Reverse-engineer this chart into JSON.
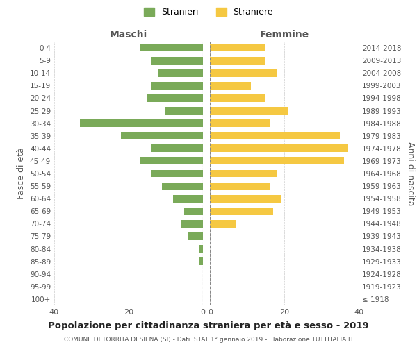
{
  "age_groups": [
    "100+",
    "95-99",
    "90-94",
    "85-89",
    "80-84",
    "75-79",
    "70-74",
    "65-69",
    "60-64",
    "55-59",
    "50-54",
    "45-49",
    "40-44",
    "35-39",
    "30-34",
    "25-29",
    "20-24",
    "15-19",
    "10-14",
    "5-9",
    "0-4"
  ],
  "birth_years": [
    "≤ 1918",
    "1919-1923",
    "1924-1928",
    "1929-1933",
    "1934-1938",
    "1939-1943",
    "1944-1948",
    "1949-1953",
    "1954-1958",
    "1959-1963",
    "1964-1968",
    "1969-1973",
    "1974-1978",
    "1979-1983",
    "1984-1988",
    "1989-1993",
    "1994-1998",
    "1999-2003",
    "2004-2008",
    "2009-2013",
    "2014-2018"
  ],
  "maschi": [
    0,
    0,
    0,
    1,
    1,
    4,
    6,
    5,
    8,
    11,
    14,
    17,
    14,
    22,
    33,
    10,
    15,
    14,
    12,
    14,
    17
  ],
  "femmine": [
    0,
    0,
    0,
    0,
    0,
    0,
    7,
    17,
    19,
    16,
    18,
    36,
    37,
    35,
    16,
    21,
    15,
    11,
    18,
    15,
    15
  ],
  "color_maschi": "#7aaa59",
  "color_femmine": "#f5c842",
  "title": "Popolazione per cittadinanza straniera per età e sesso - 2019",
  "subtitle": "COMUNE DI TORRITA DI SIENA (SI) - Dati ISTAT 1° gennaio 2019 - Elaborazione TUTTITALIA.IT",
  "ylabel_left": "Fasce di età",
  "ylabel_right": "Anni di nascita",
  "xlabel_maschi": "Maschi",
  "xlabel_femmine": "Femmine",
  "legend_maschi": "Stranieri",
  "legend_femmine": "Straniere",
  "xlim": 40,
  "background_color": "#ffffff",
  "grid_color": "#cccccc"
}
